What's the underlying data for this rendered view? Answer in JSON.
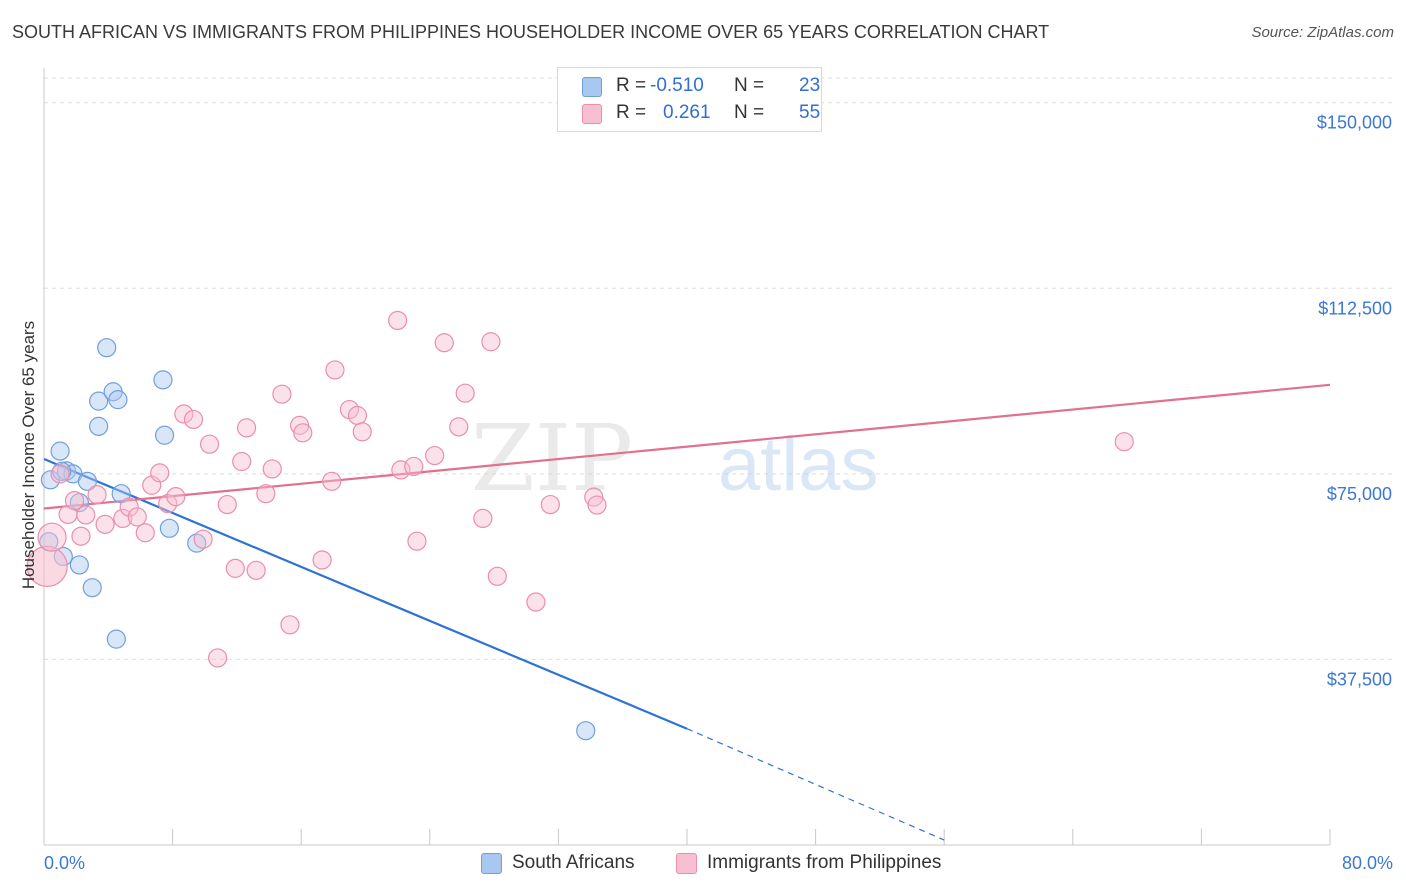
{
  "title": "SOUTH AFRICAN VS IMMIGRANTS FROM PHILIPPINES HOUSEHOLDER INCOME OVER 65 YEARS CORRELATION CHART",
  "source": "Source: ZipAtlas.com",
  "watermark": {
    "zip": "ZIP",
    "atlas": "atlas"
  },
  "legend": {
    "rows": [
      {
        "r_label": "R =",
        "r_value": "-0.510",
        "n_label": "N =",
        "n_value": "23",
        "color": "#a9c8f0",
        "border": "#6f9fe0"
      },
      {
        "r_label": "R =",
        "r_value": "0.261",
        "n_label": "N =",
        "n_value": "55",
        "color": "#f7bfd0",
        "border": "#ea8eac"
      }
    ]
  },
  "bottom_legend": [
    {
      "label": "South Africans",
      "color": "#a9c8f0",
      "border": "#6f9fe0"
    },
    {
      "label": "Immigrants from Philippines",
      "color": "#f7bfd0",
      "border": "#ea8eac"
    }
  ],
  "chart_data": {
    "type": "scatter",
    "title": "SOUTH AFRICAN VS IMMIGRANTS FROM PHILIPPINES HOUSEHOLDER INCOME OVER 65 YEARS CORRELATION CHART",
    "xlabel": "",
    "ylabel": "Householder Income Over 65 years",
    "xlim": [
      0,
      80
    ],
    "ylim": [
      0,
      155000
    ],
    "x_tick_labels": [
      "0.0%",
      "80.0%"
    ],
    "y_ticks": [
      37500,
      75000,
      112500,
      150000
    ],
    "y_tick_labels": [
      "$37,500",
      "$75,000",
      "$112,500",
      "$150,000"
    ],
    "grid": true,
    "series": [
      {
        "name": "South Africans",
        "color": "#6f9fe0",
        "fill": "#a9c8f0",
        "line_color": "#2f72d6",
        "trend": {
          "x0": 0,
          "y0": 78000,
          "x1": 40,
          "y1": 23500,
          "dash_x1": 56,
          "dash_y1": 1000
        },
        "points": [
          [
            0.4,
            73800
          ],
          [
            1.0,
            79600
          ],
          [
            1.4,
            75600
          ],
          [
            1.8,
            75000
          ],
          [
            2.2,
            69200
          ],
          [
            2.2,
            56600
          ],
          [
            2.7,
            73500
          ],
          [
            3.0,
            52000
          ],
          [
            3.4,
            84600
          ],
          [
            3.4,
            89700
          ],
          [
            3.9,
            100500
          ],
          [
            4.3,
            91600
          ],
          [
            4.6,
            90000
          ],
          [
            4.8,
            71000
          ],
          [
            4.5,
            41600
          ],
          [
            7.4,
            94000
          ],
          [
            7.5,
            82800
          ],
          [
            7.8,
            64000
          ],
          [
            9.5,
            61000
          ],
          [
            1.2,
            58300
          ],
          [
            0.3,
            61300
          ],
          [
            1.1,
            75500
          ],
          [
            33.7,
            23100
          ]
        ]
      },
      {
        "name": "Immigrants from Philippines",
        "color": "#ea8eac",
        "fill": "#f7bfd0",
        "line_color": "#e2708f",
        "trend": {
          "x0": 0,
          "y0": 68000,
          "x1": 80,
          "y1": 93000
        },
        "points": [
          [
            0.2,
            56300
          ],
          [
            0.5,
            62200
          ],
          [
            1.5,
            66800
          ],
          [
            1.9,
            69600
          ],
          [
            2.3,
            62400
          ],
          [
            2.6,
            66700
          ],
          [
            3.3,
            70800
          ],
          [
            3.8,
            64800
          ],
          [
            4.9,
            66000
          ],
          [
            5.3,
            68300
          ],
          [
            5.8,
            66300
          ],
          [
            6.3,
            63100
          ],
          [
            6.7,
            72700
          ],
          [
            7.2,
            75200
          ],
          [
            7.7,
            69000
          ],
          [
            8.2,
            70400
          ],
          [
            8.7,
            87100
          ],
          [
            9.3,
            86000
          ],
          [
            9.9,
            61800
          ],
          [
            10.3,
            81000
          ],
          [
            10.8,
            37800
          ],
          [
            11.4,
            68800
          ],
          [
            11.9,
            55900
          ],
          [
            12.3,
            77500
          ],
          [
            12.6,
            84300
          ],
          [
            13.2,
            55500
          ],
          [
            13.8,
            71000
          ],
          [
            14.2,
            76000
          ],
          [
            14.8,
            91100
          ],
          [
            15.3,
            44500
          ],
          [
            15.9,
            84800
          ],
          [
            16.1,
            83300
          ],
          [
            17.3,
            57600
          ],
          [
            17.9,
            73500
          ],
          [
            18.1,
            96000
          ],
          [
            19.0,
            88000
          ],
          [
            19.5,
            86800
          ],
          [
            19.8,
            83500
          ],
          [
            22.0,
            106000
          ],
          [
            22.2,
            75800
          ],
          [
            23.0,
            76500
          ],
          [
            23.2,
            61400
          ],
          [
            24.3,
            78700
          ],
          [
            24.9,
            101500
          ],
          [
            25.8,
            84500
          ],
          [
            26.2,
            91300
          ],
          [
            27.3,
            66000
          ],
          [
            27.8,
            101700
          ],
          [
            28.2,
            54300
          ],
          [
            30.6,
            49100
          ],
          [
            31.5,
            68800
          ],
          [
            34.2,
            70300
          ],
          [
            34.4,
            68700
          ],
          [
            67.2,
            81500
          ],
          [
            1.0,
            75000
          ]
        ]
      }
    ]
  }
}
